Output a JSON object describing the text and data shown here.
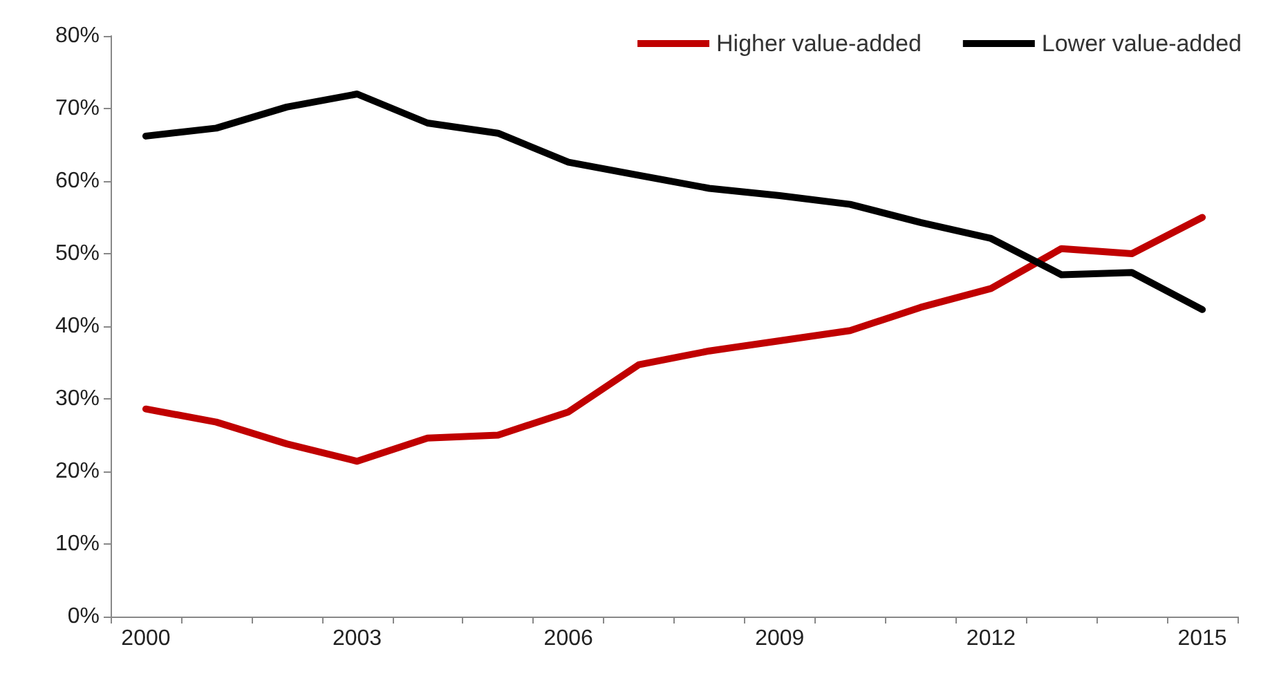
{
  "chart_data": {
    "type": "line",
    "categories": [
      "2000",
      null,
      null,
      "2003",
      null,
      null,
      "2006",
      null,
      null,
      "2009",
      null,
      null,
      "2012",
      null,
      null,
      "2015"
    ],
    "series": [
      {
        "name": "Higher value-added",
        "color": "#c00000",
        "values": [
          28.6,
          26.8,
          23.8,
          21.4,
          24.6,
          25.0,
          28.2,
          34.7,
          36.6,
          38.0,
          39.4,
          42.6,
          45.2,
          50.7,
          50.0,
          55.0
        ]
      },
      {
        "name": "Lower value-added",
        "color": "#000000",
        "values": [
          66.2,
          67.3,
          70.2,
          72.0,
          68.0,
          66.6,
          62.6,
          60.8,
          59.0,
          58.0,
          56.8,
          54.3,
          52.1,
          47.1,
          47.4,
          42.3
        ]
      }
    ],
    "ylim": [
      0,
      80
    ],
    "yticks": [
      {
        "value": 0,
        "label": "0%"
      },
      {
        "value": 10,
        "label": "10%"
      },
      {
        "value": 20,
        "label": "20%"
      },
      {
        "value": 30,
        "label": "30%"
      },
      {
        "value": 40,
        "label": "40%"
      },
      {
        "value": 50,
        "label": "50%"
      },
      {
        "value": 60,
        "label": "60%"
      },
      {
        "value": 70,
        "label": "70%"
      },
      {
        "value": 80,
        "label": "80%"
      }
    ],
    "grid": false,
    "legend": "top right",
    "marker": "none",
    "line_style": "solid"
  }
}
